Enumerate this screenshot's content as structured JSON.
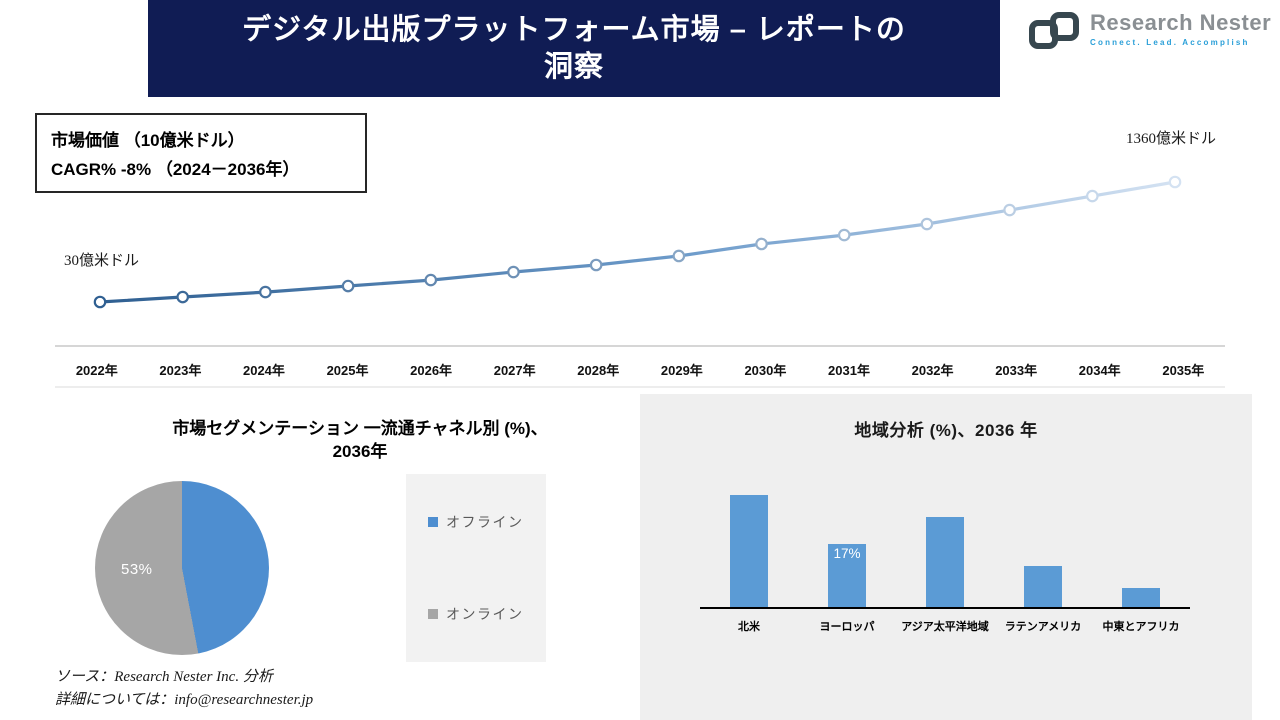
{
  "header": {
    "title_lines": [
      "デジタル出版プラットフォーム市場 – レポートの",
      "洞察"
    ],
    "banner_color": "#101C54",
    "logo": {
      "name": "Research Nester",
      "tagline": "Connect. Lead. Accomplish"
    }
  },
  "info_box": {
    "line1": "市場価値 （10億米ドル）",
    "line2": "CAGR% -8% （2024－2036年）"
  },
  "footer": {
    "source": "ソース：Research Nester Inc. 分析",
    "contact": "詳細については：info@researchnester.jp"
  },
  "colors": {
    "accent_blue": "#5B9BD5",
    "gray": "#A6A6A6",
    "line_dark": "#2F5F91",
    "line_light": "#D4E2F2",
    "panel_bg": "#EFEFEF"
  },
  "chart_data": [
    {
      "type": "line",
      "title": "市場価値（10億米ドル）",
      "x": [
        "2022年",
        "2023年",
        "2024年",
        "2025年",
        "2026年",
        "2027年",
        "2028年",
        "2029年",
        "2030年",
        "2031年",
        "2032年",
        "2033年",
        "2034年",
        "2035年"
      ],
      "values": [
        30,
        85,
        140,
        207,
        273,
        362,
        440,
        540,
        673,
        772,
        894,
        1049,
        1204,
        1360
      ],
      "start_label": "30億米ドル",
      "end_label": "1360億米ドル",
      "ylim": [
        30,
        1360
      ],
      "grid": false,
      "legend": "none"
    },
    {
      "type": "pie",
      "title_lines": [
        "市場セグメンテーション 一流通チャネル別 (%)、",
        "2036年"
      ],
      "labels": [
        "オフライン",
        "オンライン"
      ],
      "values": [
        47,
        53
      ],
      "colors": [
        "#4E8ED0",
        "#A6A6A6"
      ],
      "shown_label": "53%",
      "legend_position": "right"
    },
    {
      "type": "bar",
      "title": "地域分析 (%)、2036 年",
      "categories": [
        "北米",
        "ヨーロッパ",
        "アジア太平洋地域",
        "ラテンアメリカ",
        "中東とアフリカ"
      ],
      "values": [
        30,
        17,
        24,
        11,
        5
      ],
      "bar_labels": [
        "",
        "17%",
        "",
        "",
        ""
      ],
      "bar_color": "#5B9BD5",
      "ylim": [
        0,
        30
      ]
    }
  ]
}
